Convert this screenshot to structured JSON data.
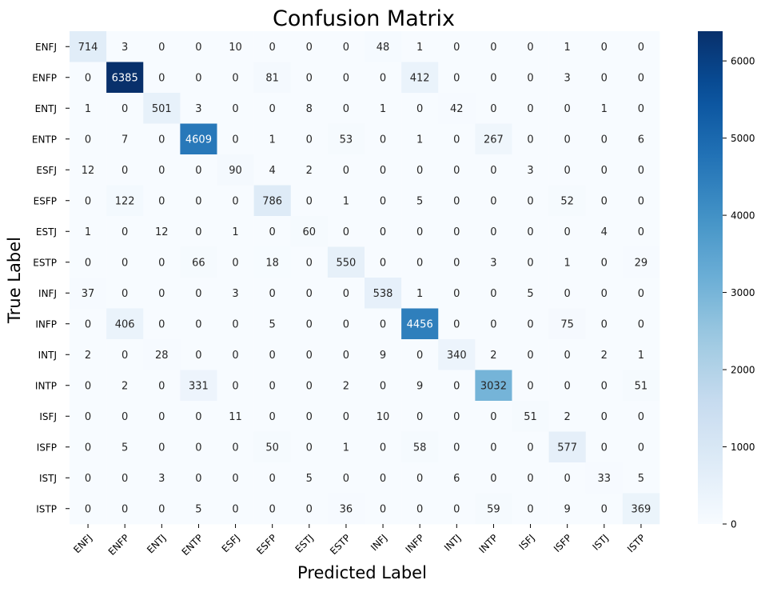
{
  "chart_data": {
    "type": "heatmap",
    "title": "Confusion Matrix",
    "xlabel": "Predicted Label",
    "ylabel": "True Label",
    "x_categories": [
      "ENFJ",
      "ENFP",
      "ENTJ",
      "ENTP",
      "ESFJ",
      "ESFP",
      "ESTJ",
      "ESTP",
      "INFJ",
      "INFP",
      "INTJ",
      "INTP",
      "ISFJ",
      "ISFP",
      "ISTJ",
      "ISTP"
    ],
    "y_categories": [
      "ENFJ",
      "ENFP",
      "ENTJ",
      "ENTP",
      "ESFJ",
      "ESFP",
      "ESTJ",
      "ESTP",
      "INFJ",
      "INFP",
      "INTJ",
      "INTP",
      "ISFJ",
      "ISFP",
      "ISTJ",
      "ISTP"
    ],
    "values": [
      [
        714,
        3,
        0,
        0,
        10,
        0,
        0,
        0,
        48,
        1,
        0,
        0,
        0,
        1,
        0,
        0
      ],
      [
        0,
        6385,
        0,
        0,
        0,
        81,
        0,
        0,
        0,
        412,
        0,
        0,
        0,
        3,
        0,
        0
      ],
      [
        1,
        0,
        501,
        3,
        0,
        0,
        8,
        0,
        1,
        0,
        42,
        0,
        0,
        0,
        1,
        0
      ],
      [
        0,
        7,
        0,
        4609,
        0,
        1,
        0,
        53,
        0,
        1,
        0,
        267,
        0,
        0,
        0,
        6
      ],
      [
        12,
        0,
        0,
        0,
        90,
        4,
        2,
        0,
        0,
        0,
        0,
        0,
        3,
        0,
        0,
        0
      ],
      [
        0,
        122,
        0,
        0,
        0,
        786,
        0,
        1,
        0,
        5,
        0,
        0,
        0,
        52,
        0,
        0
      ],
      [
        1,
        0,
        12,
        0,
        1,
        0,
        60,
        0,
        0,
        0,
        0,
        0,
        0,
        0,
        4,
        0
      ],
      [
        0,
        0,
        0,
        66,
        0,
        18,
        0,
        550,
        0,
        0,
        0,
        3,
        0,
        1,
        0,
        29
      ],
      [
        37,
        0,
        0,
        0,
        3,
        0,
        0,
        0,
        538,
        1,
        0,
        0,
        5,
        0,
        0,
        0
      ],
      [
        0,
        406,
        0,
        0,
        0,
        5,
        0,
        0,
        0,
        4456,
        0,
        0,
        0,
        75,
        0,
        0
      ],
      [
        2,
        0,
        28,
        0,
        0,
        0,
        0,
        0,
        9,
        0,
        340,
        2,
        0,
        0,
        2,
        1
      ],
      [
        0,
        2,
        0,
        331,
        0,
        0,
        0,
        2,
        0,
        9,
        0,
        3032,
        0,
        0,
        0,
        51
      ],
      [
        0,
        0,
        0,
        0,
        11,
        0,
        0,
        0,
        10,
        0,
        0,
        0,
        51,
        2,
        0,
        0
      ],
      [
        0,
        5,
        0,
        0,
        0,
        50,
        0,
        1,
        0,
        58,
        0,
        0,
        0,
        577,
        0,
        0
      ],
      [
        0,
        0,
        3,
        0,
        0,
        0,
        5,
        0,
        0,
        0,
        6,
        0,
        0,
        0,
        33,
        5
      ],
      [
        0,
        0,
        0,
        5,
        0,
        0,
        0,
        36,
        0,
        0,
        0,
        59,
        0,
        9,
        0,
        369
      ]
    ],
    "colorbar": {
      "colormap": "Blues",
      "range": [
        0,
        6385
      ],
      "ticks": [
        0,
        1000,
        2000,
        3000,
        4000,
        5000,
        6000
      ],
      "tick_labels": [
        "0",
        "1000",
        "2000",
        "3000",
        "4000",
        "5000",
        "6000"
      ]
    },
    "annotation_colors": {
      "dark_text": "#262626",
      "light_text": "#ffffff"
    }
  }
}
